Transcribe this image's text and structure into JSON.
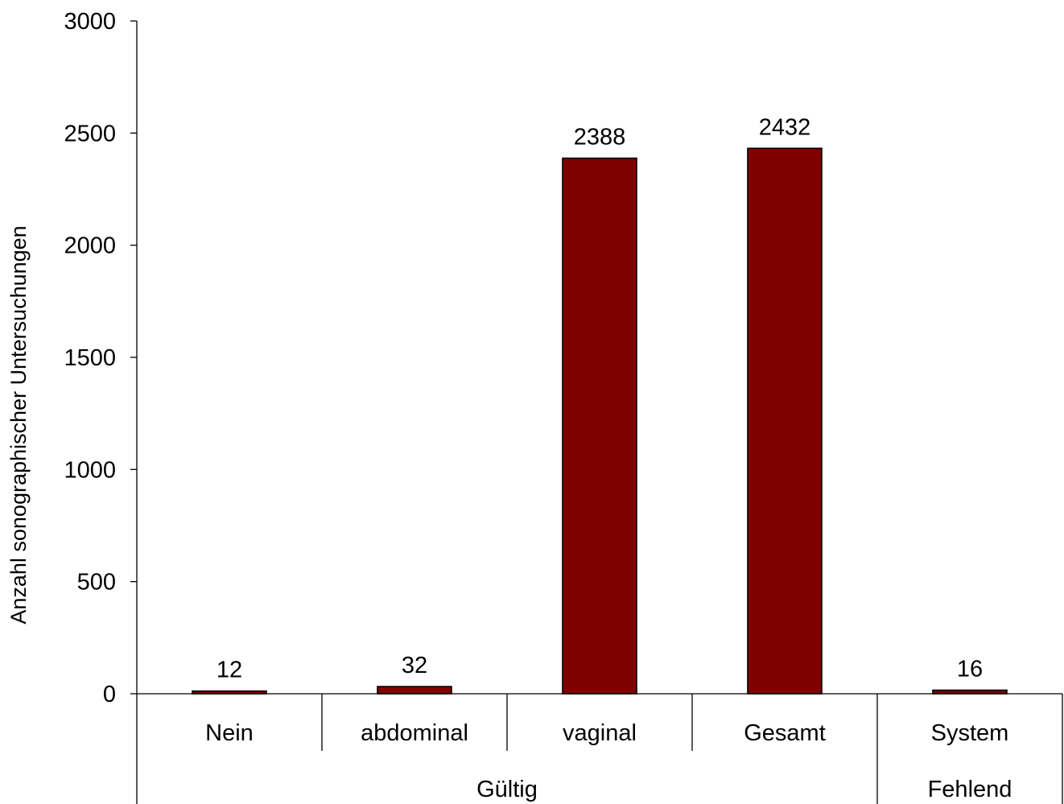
{
  "chart_data": {
    "type": "bar",
    "categories": [
      "Nein",
      "abdominal",
      "vaginal",
      "Gesamt",
      "System"
    ],
    "values": [
      12,
      32,
      2388,
      2432,
      16
    ],
    "data_labels": [
      "12",
      "32",
      "2388",
      "2432",
      "16"
    ],
    "groups": [
      {
        "label": "Gültig",
        "categories": [
          "Nein",
          "abdominal",
          "vaginal",
          "Gesamt"
        ]
      },
      {
        "label": "Fehlend",
        "categories": [
          "System"
        ]
      }
    ],
    "title": "",
    "xlabel": "",
    "ylabel": "Anzahl sonographischer Untersuchungen",
    "ylim": [
      0,
      3000
    ],
    "yticks": [
      0,
      500,
      1000,
      1500,
      2000,
      2500,
      3000
    ],
    "yticks_labels": [
      "0",
      "500",
      "1000",
      "1500",
      "2000",
      "2500",
      "3000"
    ],
    "grid": false,
    "legend": "none",
    "colors": {
      "bar": "#800000",
      "bar_edge": "#000000",
      "axis": "#000000"
    }
  }
}
